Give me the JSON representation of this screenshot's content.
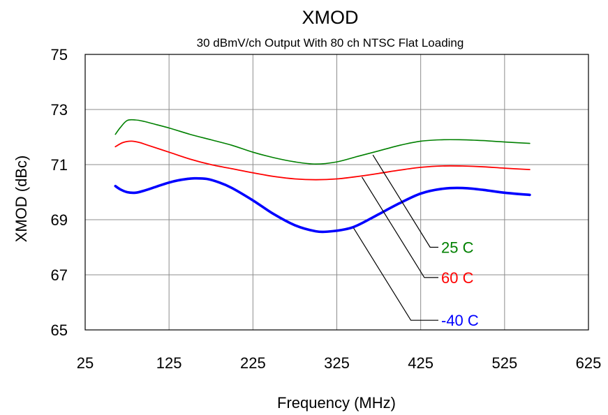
{
  "chart_data": {
    "type": "line",
    "title": "XMOD",
    "subtitle": "30 dBmV/ch Output With 80 ch NTSC Flat Loading",
    "xlabel": "Frequency (MHz)",
    "ylabel": "XMOD (dBc)",
    "xlim": [
      25,
      625
    ],
    "ylim": [
      65,
      75
    ],
    "xticks": [
      25,
      125,
      225,
      325,
      425,
      525,
      625
    ],
    "yticks": [
      65,
      67,
      69,
      71,
      73,
      75
    ],
    "x_tick_labels": [
      "25",
      "125",
      "225",
      "325",
      "425",
      "525",
      "625"
    ],
    "y_tick_labels": [
      "65",
      "67",
      "69",
      "71",
      "73",
      "75"
    ],
    "grid": true,
    "legend_position": "callout labels lower-right",
    "series": [
      {
        "name": "25 C",
        "color": "#008000",
        "x": [
          61,
          67,
          75,
          85,
          95,
          110,
          125,
          150,
          175,
          200,
          225,
          250,
          275,
          300,
          325,
          350,
          375,
          400,
          425,
          450,
          475,
          500,
          525,
          555
        ],
        "y": [
          72.1,
          72.35,
          72.6,
          72.62,
          72.57,
          72.45,
          72.33,
          72.1,
          71.9,
          71.7,
          71.45,
          71.25,
          71.1,
          71.02,
          71.1,
          71.3,
          71.5,
          71.7,
          71.85,
          71.9,
          71.9,
          71.87,
          71.82,
          71.77
        ]
      },
      {
        "name": "60 C",
        "color": "#ff0000",
        "x": [
          61,
          70,
          80,
          90,
          100,
          125,
          150,
          175,
          200,
          225,
          250,
          275,
          300,
          325,
          350,
          375,
          400,
          425,
          450,
          475,
          500,
          525,
          555
        ],
        "y": [
          71.65,
          71.8,
          71.85,
          71.8,
          71.7,
          71.45,
          71.2,
          71.0,
          70.85,
          70.7,
          70.57,
          70.48,
          70.45,
          70.48,
          70.57,
          70.68,
          70.8,
          70.9,
          70.95,
          70.95,
          70.92,
          70.87,
          70.82
        ]
      },
      {
        "name": "-40 C",
        "color": "#0000ff",
        "x": [
          61,
          67,
          75,
          85,
          95,
          110,
          125,
          140,
          155,
          170,
          185,
          200,
          225,
          250,
          275,
          300,
          315,
          335,
          350,
          375,
          400,
          425,
          450,
          475,
          500,
          525,
          555
        ],
        "y": [
          70.22,
          70.1,
          70.0,
          69.98,
          70.05,
          70.2,
          70.35,
          70.45,
          70.5,
          70.48,
          70.35,
          70.15,
          69.7,
          69.2,
          68.8,
          68.58,
          68.57,
          68.65,
          68.8,
          69.2,
          69.6,
          69.95,
          70.12,
          70.15,
          70.08,
          69.98,
          69.9
        ]
      }
    ],
    "annotations": [
      {
        "label": "25 C",
        "color": "#008000",
        "point_to": [
          368,
          71.35
        ],
        "elbow_y": 68.0
      },
      {
        "label": "60 C",
        "color": "#ff0000",
        "point_to": [
          355,
          70.55
        ],
        "elbow_y": 66.9
      },
      {
        "label": "-40 C",
        "color": "#0000ff",
        "point_to": [
          345,
          68.7
        ],
        "elbow_y": 65.35
      }
    ]
  }
}
